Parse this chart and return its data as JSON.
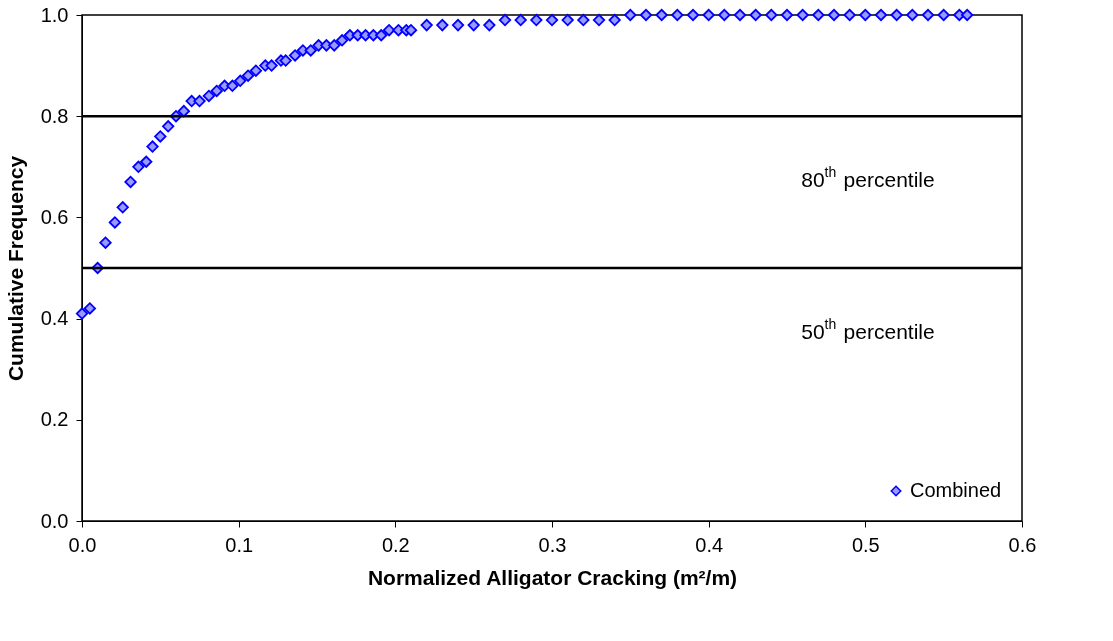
{
  "chart_data": {
    "type": "scatter",
    "xlabel": "Normalized Alligator Cracking (m²/m)",
    "ylabel": "Cumulative Frequency",
    "xlim": [
      0,
      0.6
    ],
    "xticks": [
      {
        "value": 0,
        "label": "0.0"
      },
      0.1,
      0.2,
      0.3,
      0.4,
      0.5,
      0.6
    ],
    "ylim": [
      0,
      1
    ],
    "yticks": [
      {
        "value": 0,
        "label": "0.0"
      },
      0.2,
      0.4,
      0.6,
      0.8,
      {
        "value": 1,
        "label": "1.0"
      }
    ],
    "grid": false,
    "legend": "bottom right",
    "marker": "diamond",
    "ref_lines": [
      {
        "axis": "y",
        "value": 0.8,
        "label": "80$^{th}$ percentile",
        "color": "#000000"
      },
      {
        "axis": "y",
        "value": 0.5,
        "label": "50$^{th}$ percentile",
        "color": "#000000"
      }
    ],
    "series": [
      {
        "name": "Combined",
        "color": "#0000ff",
        "x": [
          0.0,
          0.005,
          0.01,
          0.015,
          0.021,
          0.026,
          0.031,
          0.036,
          0.041,
          0.045,
          0.05,
          0.055,
          0.06,
          0.065,
          0.07,
          0.075,
          0.081,
          0.086,
          0.091,
          0.096,
          0.101,
          0.106,
          0.111,
          0.117,
          0.121,
          0.127,
          0.13,
          0.136,
          0.141,
          0.146,
          0.151,
          0.156,
          0.161,
          0.166,
          0.171,
          0.176,
          0.181,
          0.186,
          0.191,
          0.196,
          0.202,
          0.207,
          0.21,
          0.22,
          0.23,
          0.24,
          0.25,
          0.26,
          0.27,
          0.28,
          0.29,
          0.3,
          0.31,
          0.32,
          0.33,
          0.34,
          0.35,
          0.36,
          0.37,
          0.38,
          0.39,
          0.4,
          0.41,
          0.42,
          0.43,
          0.44,
          0.45,
          0.46,
          0.47,
          0.48,
          0.49,
          0.5,
          0.51,
          0.52,
          0.53,
          0.54,
          0.55,
          0.56,
          0.565
        ],
        "values": [
          0.41,
          0.42,
          0.5,
          0.55,
          0.59,
          0.62,
          0.67,
          0.7,
          0.71,
          0.74,
          0.76,
          0.78,
          0.8,
          0.81,
          0.83,
          0.83,
          0.84,
          0.85,
          0.86,
          0.86,
          0.87,
          0.88,
          0.89,
          0.9,
          0.9,
          0.91,
          0.91,
          0.92,
          0.93,
          0.93,
          0.94,
          0.94,
          0.94,
          0.95,
          0.96,
          0.96,
          0.96,
          0.96,
          0.96,
          0.97,
          0.97,
          0.97,
          0.97,
          0.98,
          0.98,
          0.98,
          0.98,
          0.98,
          0.99,
          0.99,
          0.99,
          0.99,
          0.99,
          0.99,
          0.99,
          0.99,
          1.0,
          1.0,
          1.0,
          1.0,
          1.0,
          1.0,
          1.0,
          1.0,
          1.0,
          1.0,
          1.0,
          1.0,
          1.0,
          1.0,
          1.0,
          1.0,
          1.0,
          1.0,
          1.0,
          1.0,
          1.0,
          1.0,
          1.0
        ]
      }
    ]
  }
}
